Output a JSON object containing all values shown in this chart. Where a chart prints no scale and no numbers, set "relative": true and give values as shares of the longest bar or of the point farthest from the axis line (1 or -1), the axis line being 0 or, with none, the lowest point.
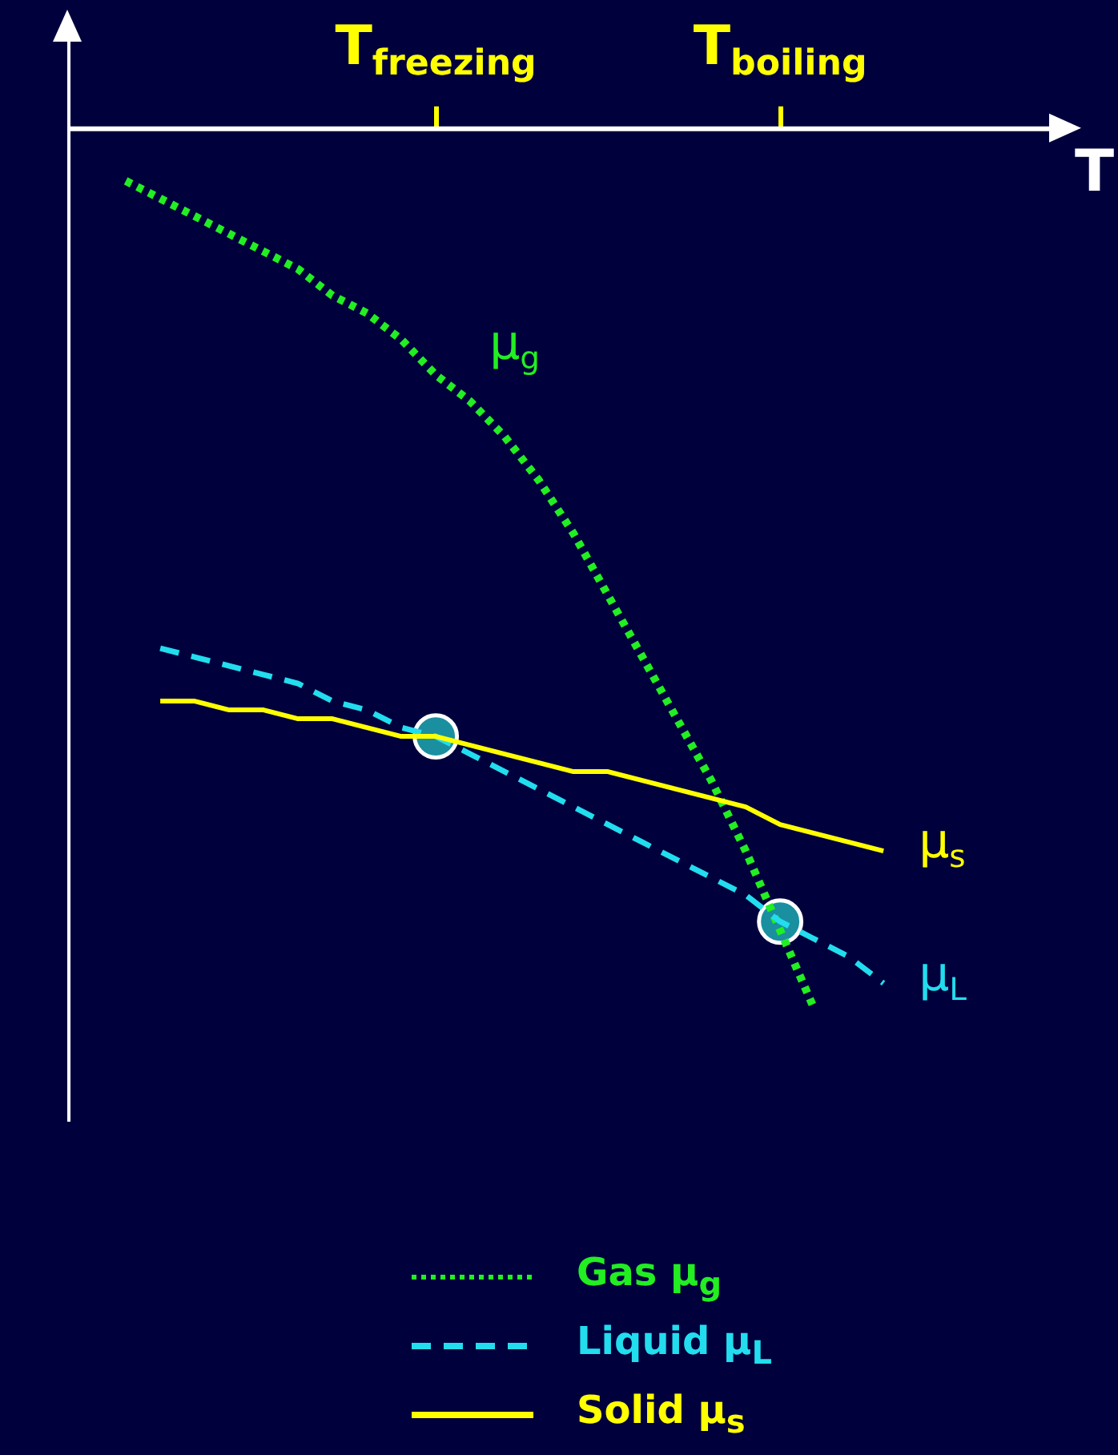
{
  "chart_data": {
    "type": "line",
    "relative": true,
    "xlabel": "T",
    "categories": [
      null,
      null,
      null,
      null,
      null,
      null,
      null,
      null,
      null,
      null,
      "T$_{freezing}$",
      null,
      null,
      null,
      null,
      null,
      null,
      null,
      null,
      null,
      "T$_{boiling}$",
      null,
      null,
      null,
      null
    ],
    "tick_labels": "x",
    "grid": false,
    "legend": "bottom",
    "series": [
      {
        "name": "Gas μ$_{g}$",
        "color": "#22ee22",
        "line_style": "dotted",
        "values": [
          null,
          -0.06,
          -0.08,
          -0.1,
          -0.12,
          -0.14,
          -0.16,
          -0.19,
          -0.21,
          -0.24,
          -0.28,
          -0.31,
          -0.35,
          -0.4,
          -0.46,
          -0.53,
          -0.6,
          -0.67,
          -0.74,
          -0.82,
          -0.91,
          -1,
          null,
          null,
          null
        ]
      },
      {
        "name": "Liquid μ$_{L}$",
        "color": "#22ddee",
        "line_style": "dashed",
        "values": [
          null,
          null,
          -0.59,
          -0.6,
          -0.61,
          -0.62,
          -0.63,
          -0.65,
          -0.66,
          -0.68,
          -0.69,
          -0.71,
          -0.73,
          -0.75,
          -0.77,
          -0.79,
          -0.81,
          -0.83,
          -0.85,
          -0.87,
          -0.9,
          -0.92,
          -0.94,
          -0.97,
          null
        ]
      },
      {
        "name": "Solid μ$_{s}$",
        "color": "#ffff00",
        "line_style": "solid",
        "values": [
          null,
          null,
          -0.65,
          -0.65,
          -0.66,
          -0.66,
          -0.67,
          -0.67,
          -0.68,
          -0.69,
          -0.69,
          -0.7,
          -0.71,
          -0.72,
          -0.73,
          -0.73,
          -0.74,
          -0.75,
          -0.76,
          -0.77,
          -0.79,
          -0.8,
          -0.81,
          -0.82,
          null
        ]
      },
      {
        "type": "scatter",
        "marker": "circle",
        "color": "#1a8fa0",
        "values": [
          null,
          null,
          null,
          null,
          null,
          null,
          null,
          null,
          null,
          null,
          -0.69,
          null,
          null,
          null,
          null,
          null,
          null,
          null,
          null,
          null,
          -0.9,
          null,
          null,
          null,
          null
        ]
      }
    ],
    "annotations": [
      "μ$_{g}$",
      "μ$_{L}$",
      "μ$_{s}$"
    ]
  }
}
